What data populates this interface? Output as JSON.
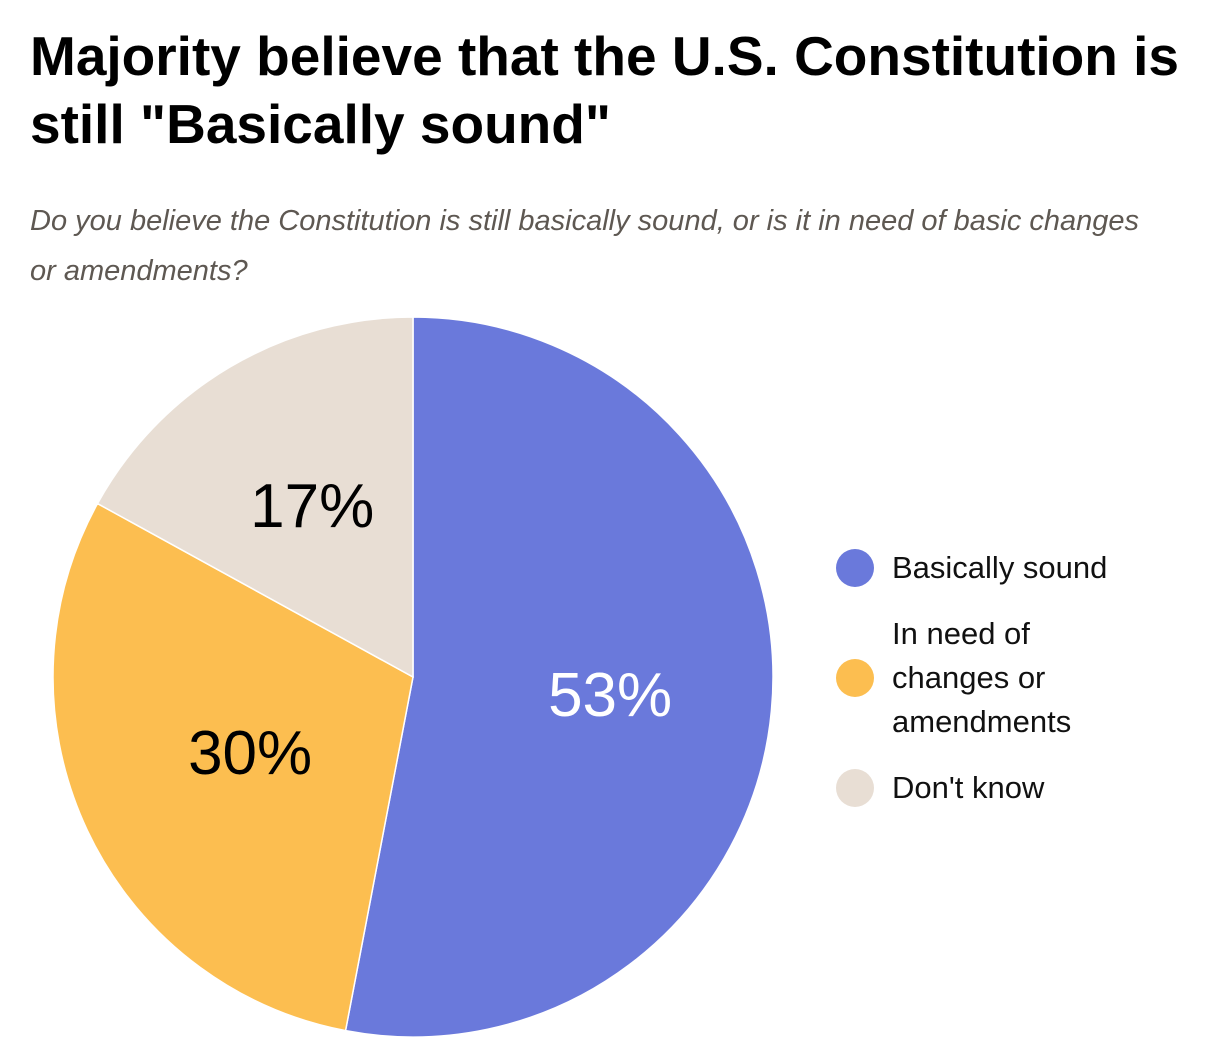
{
  "title": "Majority believe that the U.S. Constitution is still \"Basically sound\"",
  "subtitle": "Do you believe the Constitution is still basically sound, or is it in need of basic changes or amendments?",
  "chart_data": {
    "type": "pie",
    "title": "Majority believe that the U.S. Constitution is still \"Basically sound\"",
    "subtitle": "Do you believe the Constitution is still basically sound, or is it in need of basic changes or amendments?",
    "categories": [
      "Basically sound",
      "In need of changes or amendments",
      "Don't know"
    ],
    "values": [
      53,
      30,
      17
    ],
    "labels": [
      "53%",
      "30%",
      "17%"
    ],
    "colors": [
      "#6a79db",
      "#fcbe50",
      "#e8ded4"
    ],
    "label_colors": [
      "#ffffff",
      "#000000",
      "#000000"
    ],
    "start_angle": "12 o'clock",
    "direction": "clockwise",
    "legend_position": "right"
  },
  "legend": {
    "items": [
      {
        "label": "Basically sound",
        "color": "#6a79db"
      },
      {
        "label": "In need of changes or amendments",
        "color": "#fcbe50"
      },
      {
        "label": "Don't know",
        "color": "#e8ded4"
      }
    ]
  }
}
